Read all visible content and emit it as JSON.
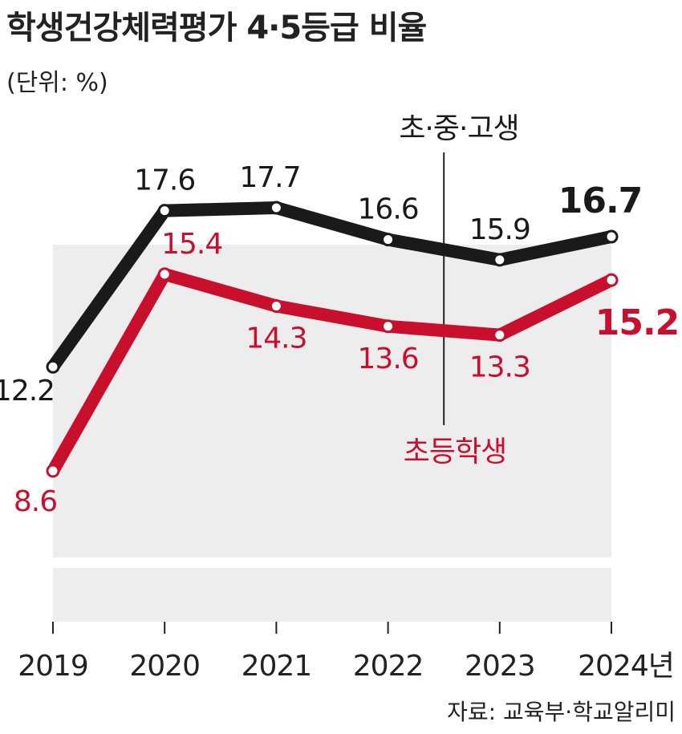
{
  "title": "학생건강체력평가 4·5등급 비율",
  "unit": "(단위: %)",
  "source": "자료: 교육부·학교알리미",
  "chart_data": {
    "type": "line",
    "categories": [
      "2019",
      "2020",
      "2021",
      "2022",
      "2023",
      "2024년"
    ],
    "series": [
      {
        "name": "초·중·고생",
        "values": [
          12.2,
          17.6,
          17.7,
          16.6,
          15.9,
          16.7
        ],
        "color": "#1a1a1a",
        "labels": [
          "12.2",
          "17.6",
          "17.7",
          "16.6",
          "15.9",
          "16.7"
        ]
      },
      {
        "name": "초등학생",
        "values": [
          8.6,
          15.4,
          14.3,
          13.6,
          13.3,
          15.2
        ],
        "color": "#c8102e",
        "labels": [
          "8.6",
          "15.4",
          "14.3",
          "13.6",
          "13.3",
          "15.2"
        ]
      }
    ],
    "ylim": [
      5,
      20
    ],
    "grid": false,
    "background": "#ededed",
    "legend": "inline-annotations"
  }
}
